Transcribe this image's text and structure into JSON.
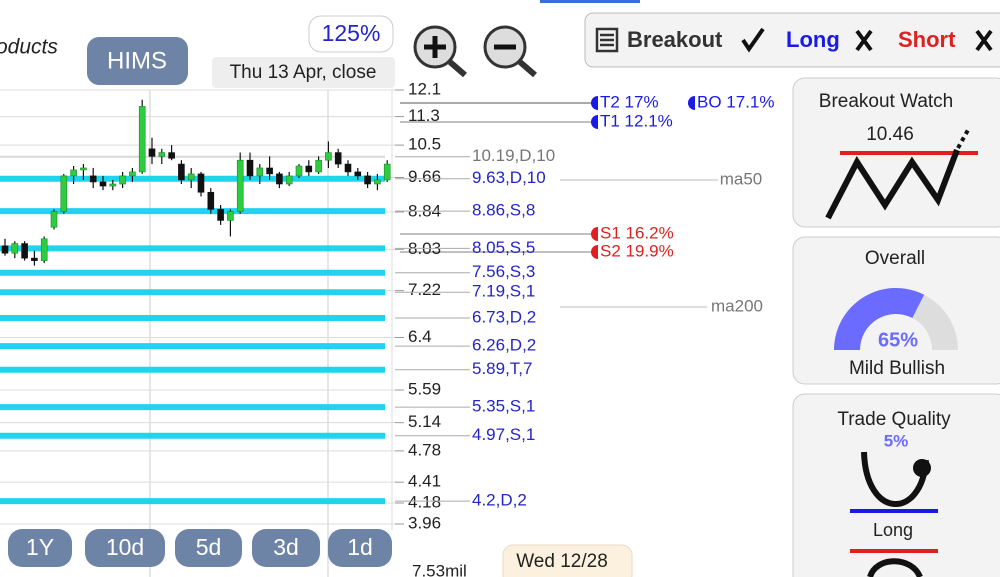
{
  "header_text": "oducts",
  "symbol": "HIMS",
  "zoom": "125%",
  "date_label": "Thu 13 Apr, close",
  "toolbar": {
    "breakout": "Breakout",
    "long": "Long",
    "short": "Short"
  },
  "price_chart": {
    "log": true,
    "ylim": [
      3.96,
      12.1
    ],
    "yticks": [
      12.1,
      11.3,
      10.5,
      9.66,
      8.84,
      8.03,
      7.22,
      6.4,
      5.59,
      5.14,
      4.78,
      4.41,
      4.18,
      3.96
    ],
    "grid": true,
    "up_color": "#2ecc40",
    "down_color": "#111111",
    "candles": [
      {
        "o": 8.1,
        "h": 8.25,
        "l": 7.9,
        "c": 7.95
      },
      {
        "o": 7.95,
        "h": 8.2,
        "l": 7.85,
        "c": 8.15
      },
      {
        "o": 8.15,
        "h": 8.2,
        "l": 7.8,
        "c": 7.85
      },
      {
        "o": 7.85,
        "h": 8.0,
        "l": 7.7,
        "c": 7.8
      },
      {
        "o": 7.8,
        "h": 8.3,
        "l": 7.75,
        "c": 8.25
      },
      {
        "o": 8.5,
        "h": 8.9,
        "l": 8.45,
        "c": 8.85
      },
      {
        "o": 8.85,
        "h": 9.75,
        "l": 8.8,
        "c": 9.7
      },
      {
        "o": 9.7,
        "h": 9.95,
        "l": 9.5,
        "c": 9.85
      },
      {
        "o": 9.85,
        "h": 10.0,
        "l": 9.6,
        "c": 9.9
      },
      {
        "o": 9.7,
        "h": 9.9,
        "l": 9.4,
        "c": 9.55
      },
      {
        "o": 9.55,
        "h": 9.7,
        "l": 9.35,
        "c": 9.45
      },
      {
        "o": 9.45,
        "h": 9.6,
        "l": 9.35,
        "c": 9.5
      },
      {
        "o": 9.5,
        "h": 9.8,
        "l": 9.4,
        "c": 9.7
      },
      {
        "o": 9.7,
        "h": 9.9,
        "l": 9.55,
        "c": 9.8
      },
      {
        "o": 9.8,
        "h": 11.8,
        "l": 9.75,
        "c": 11.6
      },
      {
        "o": 10.4,
        "h": 10.7,
        "l": 10.0,
        "c": 10.2
      },
      {
        "o": 10.2,
        "h": 10.4,
        "l": 10.0,
        "c": 10.3
      },
      {
        "o": 10.3,
        "h": 10.5,
        "l": 10.1,
        "c": 10.15
      },
      {
        "o": 10.0,
        "h": 10.1,
        "l": 9.5,
        "c": 9.6
      },
      {
        "o": 9.6,
        "h": 9.9,
        "l": 9.4,
        "c": 9.75
      },
      {
        "o": 9.75,
        "h": 9.8,
        "l": 9.2,
        "c": 9.3
      },
      {
        "o": 9.3,
        "h": 9.4,
        "l": 8.8,
        "c": 8.9
      },
      {
        "o": 8.9,
        "h": 9.0,
        "l": 8.55,
        "c": 8.65
      },
      {
        "o": 8.65,
        "h": 8.9,
        "l": 8.3,
        "c": 8.85
      },
      {
        "o": 8.85,
        "h": 10.3,
        "l": 8.8,
        "c": 10.1
      },
      {
        "o": 10.1,
        "h": 10.3,
        "l": 9.6,
        "c": 9.7
      },
      {
        "o": 9.7,
        "h": 10.0,
        "l": 9.5,
        "c": 9.9
      },
      {
        "o": 9.9,
        "h": 10.2,
        "l": 9.6,
        "c": 9.75
      },
      {
        "o": 9.75,
        "h": 9.8,
        "l": 9.4,
        "c": 9.5
      },
      {
        "o": 9.5,
        "h": 9.8,
        "l": 9.45,
        "c": 9.7
      },
      {
        "o": 9.7,
        "h": 10.0,
        "l": 9.65,
        "c": 9.95
      },
      {
        "o": 9.95,
        "h": 10.1,
        "l": 9.7,
        "c": 9.8
      },
      {
        "o": 9.8,
        "h": 10.2,
        "l": 9.75,
        "c": 10.1
      },
      {
        "o": 10.1,
        "h": 10.6,
        "l": 9.9,
        "c": 10.3
      },
      {
        "o": 10.3,
        "h": 10.4,
        "l": 9.9,
        "c": 10.0
      },
      {
        "o": 10.0,
        "h": 10.1,
        "l": 9.7,
        "c": 9.8
      },
      {
        "o": 9.8,
        "h": 9.9,
        "l": 9.6,
        "c": 9.7
      },
      {
        "o": 9.7,
        "h": 9.8,
        "l": 9.4,
        "c": 9.5
      },
      {
        "o": 9.5,
        "h": 9.75,
        "l": 9.35,
        "c": 9.6
      },
      {
        "o": 9.6,
        "h": 10.1,
        "l": 9.55,
        "c": 10.0
      }
    ],
    "levels": [
      {
        "price": 10.19,
        "label": "10.19,D,10",
        "color": "#d8d8d8",
        "label_color": "#777777"
      },
      {
        "price": 9.63,
        "label": "9.63,D,10",
        "color": "#22d3ee",
        "label_color": "#2424c8"
      },
      {
        "price": 8.86,
        "label": "8.86,S,8",
        "color": "#22d3ee",
        "label_color": "#2424c8"
      },
      {
        "price": 8.05,
        "label": "8.05,S,5",
        "color": "#22d3ee",
        "label_color": "#2424c8"
      },
      {
        "price": 7.56,
        "label": "7.56,S,3",
        "color": "#22d3ee",
        "label_color": "#2424c8"
      },
      {
        "price": 7.19,
        "label": "7.19,S,1",
        "color": "#22d3ee",
        "label_color": "#2424c8"
      },
      {
        "price": 6.73,
        "label": "6.73,D,2",
        "color": "#22d3ee",
        "label_color": "#2424c8"
      },
      {
        "price": 6.26,
        "label": "6.26,D,2",
        "color": "#22d3ee",
        "label_color": "#2424c8"
      },
      {
        "price": 5.89,
        "label": "5.89,T,7",
        "color": "#22d3ee",
        "label_color": "#2424c8"
      },
      {
        "price": 5.35,
        "label": "5.35,S,1",
        "color": "#22d3ee",
        "label_color": "#2424c8"
      },
      {
        "price": 4.97,
        "label": "4.97,S,1",
        "color": "#22d3ee",
        "label_color": "#2424c8"
      },
      {
        "price": 4.2,
        "label": "4.2,D,2",
        "color": "#22d3ee",
        "label_color": "#2424c8"
      }
    ],
    "targets": [
      "T2 17%",
      "BO 17.1%",
      "T1 12.1%",
      "S1 16.2%",
      "S2 19.9%"
    ],
    "ma_labels": [
      "ma50",
      "ma200"
    ],
    "volume_label": "7.53mil"
  },
  "panels": {
    "breakout_watch": {
      "title": "Breakout Watch",
      "price": "10.46"
    },
    "overall": {
      "title": "Overall",
      "value": 65,
      "value_label": "65%",
      "rating": "Mild Bullish"
    },
    "trade_quality": {
      "title": "Trade Quality",
      "value": 5,
      "value_label": "5%",
      "direction": "Long"
    }
  },
  "periods": [
    "1Y",
    "10d",
    "5d",
    "3d",
    "1d"
  ],
  "cursor_date": "Wed 12/28"
}
